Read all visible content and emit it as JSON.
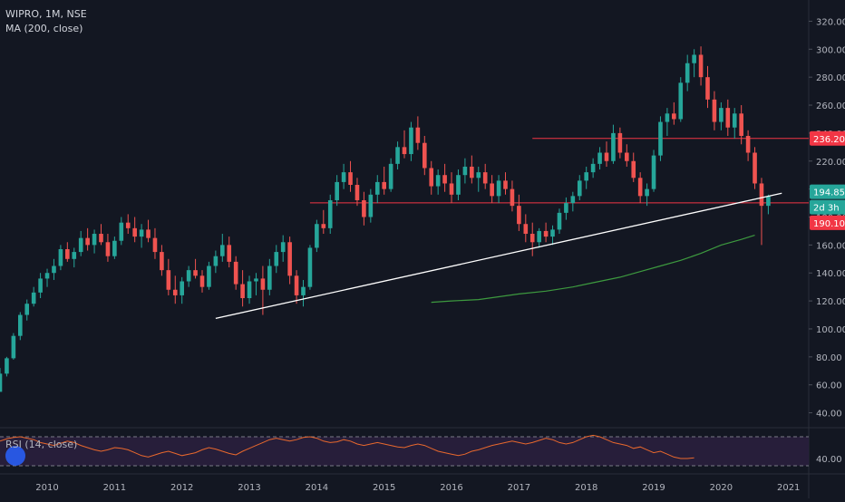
{
  "header": {
    "symbol_line": "WIPRO, 1M, NSE",
    "indicator_line": "MA (200, close)"
  },
  "rsi_panel": {
    "label": "RSI (14, close)",
    "tick": "40.00",
    "upper_band": 70,
    "lower_band": 30,
    "line_color": "#e8682d",
    "band_fill": "#2a1f3d"
  },
  "colors": {
    "background": "#131722",
    "up": "#26a69a",
    "down": "#ef5350",
    "trendline": "#ffffff",
    "hline": "#f23645",
    "ma": "#3d9a3f",
    "axis_text": "#b2b5be"
  },
  "price_labels": {
    "level_236": "236.20",
    "last_price": "194.85",
    "countdown": "2d 3h",
    "level_190": "190.10",
    "last_price_bg": "#26a69a",
    "level_bg": "#f23645"
  },
  "chart_data": {
    "type": "candlestick",
    "symbol": "WIPRO",
    "interval": "1M",
    "exchange": "NSE",
    "ylim": [
      30,
      330
    ],
    "xlim": [
      2009.3,
      2021.3
    ],
    "y_ticks": [
      "40.00",
      "60.00",
      "80.00",
      "100.00",
      "120.00",
      "140.00",
      "160.00",
      "180.00",
      "200.00",
      "220.00",
      "240.00",
      "260.00",
      "280.00",
      "300.00",
      "320.00"
    ],
    "x_ticks": [
      "2010",
      "2011",
      "2012",
      "2013",
      "2014",
      "2015",
      "2016",
      "2017",
      "2018",
      "2019",
      "2020",
      "2021"
    ],
    "horizontal_levels": [
      236.2,
      190.1
    ],
    "trendline": {
      "from": [
        2012.5,
        107.5
      ],
      "to": [
        2020.9,
        197
      ]
    },
    "moving_average": {
      "name": "MA (200, close)",
      "points": [
        [
          2015.7,
          119
        ],
        [
          2016.0,
          120
        ],
        [
          2016.4,
          121
        ],
        [
          2016.7,
          123
        ],
        [
          2017.0,
          125
        ],
        [
          2017.4,
          127
        ],
        [
          2017.8,
          130
        ],
        [
          2018.1,
          133
        ],
        [
          2018.5,
          137
        ],
        [
          2018.8,
          141
        ],
        [
          2019.1,
          145
        ],
        [
          2019.4,
          149
        ],
        [
          2019.7,
          154
        ],
        [
          2020.0,
          160
        ],
        [
          2020.3,
          164
        ],
        [
          2020.5,
          167
        ]
      ]
    },
    "candles": [
      {
        "t": 2009.3,
        "o": 55,
        "h": 72,
        "l": 55,
        "c": 68
      },
      {
        "t": 2009.4,
        "o": 68,
        "h": 80,
        "l": 66,
        "c": 79
      },
      {
        "t": 2009.5,
        "o": 79,
        "h": 97,
        "l": 78,
        "c": 95
      },
      {
        "t": 2009.6,
        "o": 95,
        "h": 112,
        "l": 92,
        "c": 110
      },
      {
        "t": 2009.7,
        "o": 110,
        "h": 121,
        "l": 106,
        "c": 118
      },
      {
        "t": 2009.8,
        "o": 118,
        "h": 130,
        "l": 116,
        "c": 126
      },
      {
        "t": 2009.9,
        "o": 126,
        "h": 140,
        "l": 122,
        "c": 136
      },
      {
        "t": 2010.0,
        "o": 136,
        "h": 143,
        "l": 130,
        "c": 140
      },
      {
        "t": 2010.1,
        "o": 140,
        "h": 150,
        "l": 135,
        "c": 145
      },
      {
        "t": 2010.2,
        "o": 145,
        "h": 160,
        "l": 142,
        "c": 157
      },
      {
        "t": 2010.3,
        "o": 157,
        "h": 162,
        "l": 148,
        "c": 150
      },
      {
        "t": 2010.4,
        "o": 150,
        "h": 158,
        "l": 144,
        "c": 155
      },
      {
        "t": 2010.5,
        "o": 155,
        "h": 170,
        "l": 152,
        "c": 165
      },
      {
        "t": 2010.6,
        "o": 165,
        "h": 172,
        "l": 156,
        "c": 160
      },
      {
        "t": 2010.7,
        "o": 160,
        "h": 171,
        "l": 154,
        "c": 168
      },
      {
        "t": 2010.8,
        "o": 168,
        "h": 175,
        "l": 160,
        "c": 162
      },
      {
        "t": 2010.9,
        "o": 162,
        "h": 168,
        "l": 148,
        "c": 152
      },
      {
        "t": 2011.0,
        "o": 152,
        "h": 166,
        "l": 150,
        "c": 163
      },
      {
        "t": 2011.1,
        "o": 163,
        "h": 180,
        "l": 160,
        "c": 176
      },
      {
        "t": 2011.2,
        "o": 176,
        "h": 182,
        "l": 168,
        "c": 172
      },
      {
        "t": 2011.3,
        "o": 172,
        "h": 180,
        "l": 162,
        "c": 166
      },
      {
        "t": 2011.4,
        "o": 166,
        "h": 175,
        "l": 158,
        "c": 171
      },
      {
        "t": 2011.5,
        "o": 171,
        "h": 178,
        "l": 162,
        "c": 165
      },
      {
        "t": 2011.6,
        "o": 165,
        "h": 172,
        "l": 150,
        "c": 155
      },
      {
        "t": 2011.7,
        "o": 155,
        "h": 160,
        "l": 138,
        "c": 142
      },
      {
        "t": 2011.8,
        "o": 142,
        "h": 150,
        "l": 124,
        "c": 128
      },
      {
        "t": 2011.9,
        "o": 128,
        "h": 138,
        "l": 118,
        "c": 124
      },
      {
        "t": 2012.0,
        "o": 124,
        "h": 137,
        "l": 118,
        "c": 134
      },
      {
        "t": 2012.1,
        "o": 134,
        "h": 145,
        "l": 130,
        "c": 142
      },
      {
        "t": 2012.2,
        "o": 142,
        "h": 150,
        "l": 136,
        "c": 138
      },
      {
        "t": 2012.3,
        "o": 138,
        "h": 142,
        "l": 126,
        "c": 130
      },
      {
        "t": 2012.4,
        "o": 130,
        "h": 148,
        "l": 128,
        "c": 145
      },
      {
        "t": 2012.5,
        "o": 145,
        "h": 156,
        "l": 140,
        "c": 152
      },
      {
        "t": 2012.6,
        "o": 152,
        "h": 168,
        "l": 148,
        "c": 160
      },
      {
        "t": 2012.7,
        "o": 160,
        "h": 166,
        "l": 144,
        "c": 148
      },
      {
        "t": 2012.8,
        "o": 148,
        "h": 152,
        "l": 128,
        "c": 132
      },
      {
        "t": 2012.9,
        "o": 132,
        "h": 142,
        "l": 116,
        "c": 122
      },
      {
        "t": 2013.0,
        "o": 122,
        "h": 138,
        "l": 118,
        "c": 134
      },
      {
        "t": 2013.1,
        "o": 134,
        "h": 140,
        "l": 124,
        "c": 136
      },
      {
        "t": 2013.2,
        "o": 136,
        "h": 145,
        "l": 110,
        "c": 128
      },
      {
        "t": 2013.3,
        "o": 128,
        "h": 150,
        "l": 124,
        "c": 145
      },
      {
        "t": 2013.4,
        "o": 145,
        "h": 160,
        "l": 140,
        "c": 155
      },
      {
        "t": 2013.5,
        "o": 155,
        "h": 167,
        "l": 148,
        "c": 162
      },
      {
        "t": 2013.6,
        "o": 162,
        "h": 166,
        "l": 132,
        "c": 138
      },
      {
        "t": 2013.7,
        "o": 138,
        "h": 142,
        "l": 118,
        "c": 124
      },
      {
        "t": 2013.8,
        "o": 124,
        "h": 135,
        "l": 116,
        "c": 130
      },
      {
        "t": 2013.9,
        "o": 130,
        "h": 160,
        "l": 128,
        "c": 158
      },
      {
        "t": 2014.0,
        "o": 158,
        "h": 178,
        "l": 155,
        "c": 175
      },
      {
        "t": 2014.1,
        "o": 175,
        "h": 185,
        "l": 168,
        "c": 172
      },
      {
        "t": 2014.2,
        "o": 172,
        "h": 196,
        "l": 168,
        "c": 192
      },
      {
        "t": 2014.3,
        "o": 192,
        "h": 210,
        "l": 188,
        "c": 205
      },
      {
        "t": 2014.4,
        "o": 205,
        "h": 218,
        "l": 200,
        "c": 212
      },
      {
        "t": 2014.5,
        "o": 212,
        "h": 220,
        "l": 198,
        "c": 203
      },
      {
        "t": 2014.6,
        "o": 203,
        "h": 208,
        "l": 188,
        "c": 192
      },
      {
        "t": 2014.7,
        "o": 192,
        "h": 198,
        "l": 174,
        "c": 180
      },
      {
        "t": 2014.8,
        "o": 180,
        "h": 200,
        "l": 176,
        "c": 196
      },
      {
        "t": 2014.9,
        "o": 196,
        "h": 210,
        "l": 190,
        "c": 205
      },
      {
        "t": 2015.0,
        "o": 205,
        "h": 216,
        "l": 196,
        "c": 200
      },
      {
        "t": 2015.1,
        "o": 200,
        "h": 222,
        "l": 198,
        "c": 218
      },
      {
        "t": 2015.2,
        "o": 218,
        "h": 234,
        "l": 214,
        "c": 230
      },
      {
        "t": 2015.3,
        "o": 230,
        "h": 242,
        "l": 222,
        "c": 225
      },
      {
        "t": 2015.4,
        "o": 225,
        "h": 248,
        "l": 220,
        "c": 244
      },
      {
        "t": 2015.5,
        "o": 244,
        "h": 252,
        "l": 228,
        "c": 233
      },
      {
        "t": 2015.6,
        "o": 233,
        "h": 238,
        "l": 210,
        "c": 215
      },
      {
        "t": 2015.7,
        "o": 215,
        "h": 220,
        "l": 196,
        "c": 202
      },
      {
        "t": 2015.8,
        "o": 202,
        "h": 214,
        "l": 196,
        "c": 210
      },
      {
        "t": 2015.9,
        "o": 210,
        "h": 218,
        "l": 198,
        "c": 204
      },
      {
        "t": 2016.0,
        "o": 204,
        "h": 212,
        "l": 190,
        "c": 196
      },
      {
        "t": 2016.1,
        "o": 196,
        "h": 214,
        "l": 192,
        "c": 210
      },
      {
        "t": 2016.2,
        "o": 210,
        "h": 222,
        "l": 204,
        "c": 216
      },
      {
        "t": 2016.3,
        "o": 216,
        "h": 224,
        "l": 204,
        "c": 208
      },
      {
        "t": 2016.4,
        "o": 208,
        "h": 216,
        "l": 198,
        "c": 212
      },
      {
        "t": 2016.5,
        "o": 212,
        "h": 218,
        "l": 200,
        "c": 204
      },
      {
        "t": 2016.6,
        "o": 204,
        "h": 210,
        "l": 190,
        "c": 195
      },
      {
        "t": 2016.7,
        "o": 195,
        "h": 210,
        "l": 190,
        "c": 206
      },
      {
        "t": 2016.8,
        "o": 206,
        "h": 212,
        "l": 196,
        "c": 200
      },
      {
        "t": 2016.9,
        "o": 200,
        "h": 206,
        "l": 184,
        "c": 188
      },
      {
        "t": 2017.0,
        "o": 188,
        "h": 196,
        "l": 170,
        "c": 175
      },
      {
        "t": 2017.1,
        "o": 175,
        "h": 182,
        "l": 162,
        "c": 168
      },
      {
        "t": 2017.2,
        "o": 168,
        "h": 176,
        "l": 152,
        "c": 162
      },
      {
        "t": 2017.3,
        "o": 162,
        "h": 172,
        "l": 158,
        "c": 170
      },
      {
        "t": 2017.4,
        "o": 170,
        "h": 176,
        "l": 162,
        "c": 166
      },
      {
        "t": 2017.5,
        "o": 166,
        "h": 174,
        "l": 160,
        "c": 171
      },
      {
        "t": 2017.6,
        "o": 171,
        "h": 186,
        "l": 168,
        "c": 183
      },
      {
        "t": 2017.7,
        "o": 183,
        "h": 194,
        "l": 178,
        "c": 190
      },
      {
        "t": 2017.8,
        "o": 190,
        "h": 198,
        "l": 184,
        "c": 195
      },
      {
        "t": 2017.9,
        "o": 195,
        "h": 210,
        "l": 192,
        "c": 206
      },
      {
        "t": 2018.0,
        "o": 206,
        "h": 216,
        "l": 200,
        "c": 212
      },
      {
        "t": 2018.1,
        "o": 212,
        "h": 222,
        "l": 208,
        "c": 218
      },
      {
        "t": 2018.2,
        "o": 218,
        "h": 230,
        "l": 214,
        "c": 226
      },
      {
        "t": 2018.3,
        "o": 226,
        "h": 234,
        "l": 216,
        "c": 220
      },
      {
        "t": 2018.4,
        "o": 220,
        "h": 246,
        "l": 218,
        "c": 240
      },
      {
        "t": 2018.5,
        "o": 240,
        "h": 244,
        "l": 222,
        "c": 226
      },
      {
        "t": 2018.6,
        "o": 226,
        "h": 232,
        "l": 216,
        "c": 220
      },
      {
        "t": 2018.7,
        "o": 220,
        "h": 226,
        "l": 205,
        "c": 208
      },
      {
        "t": 2018.8,
        "o": 208,
        "h": 212,
        "l": 190,
        "c": 195
      },
      {
        "t": 2018.9,
        "o": 195,
        "h": 204,
        "l": 188,
        "c": 200
      },
      {
        "t": 2019.0,
        "o": 200,
        "h": 228,
        "l": 198,
        "c": 224
      },
      {
        "t": 2019.1,
        "o": 224,
        "h": 252,
        "l": 220,
        "c": 248
      },
      {
        "t": 2019.2,
        "o": 248,
        "h": 258,
        "l": 238,
        "c": 254
      },
      {
        "t": 2019.3,
        "o": 254,
        "h": 262,
        "l": 246,
        "c": 250
      },
      {
        "t": 2019.4,
        "o": 250,
        "h": 280,
        "l": 248,
        "c": 276
      },
      {
        "t": 2019.5,
        "o": 276,
        "h": 296,
        "l": 270,
        "c": 290
      },
      {
        "t": 2019.6,
        "o": 290,
        "h": 300,
        "l": 280,
        "c": 296
      },
      {
        "t": 2019.7,
        "o": 296,
        "h": 302,
        "l": 274,
        "c": 280
      },
      {
        "t": 2019.8,
        "o": 280,
        "h": 288,
        "l": 258,
        "c": 264
      },
      {
        "t": 2019.9,
        "o": 264,
        "h": 270,
        "l": 242,
        "c": 248
      },
      {
        "t": 2020.0,
        "o": 248,
        "h": 262,
        "l": 242,
        "c": 258
      },
      {
        "t": 2020.1,
        "o": 258,
        "h": 264,
        "l": 238,
        "c": 244
      },
      {
        "t": 2020.2,
        "o": 244,
        "h": 258,
        "l": 236,
        "c": 254
      },
      {
        "t": 2020.3,
        "o": 254,
        "h": 260,
        "l": 232,
        "c": 238
      },
      {
        "t": 2020.4,
        "o": 238,
        "h": 242,
        "l": 220,
        "c": 226
      },
      {
        "t": 2020.5,
        "o": 226,
        "h": 230,
        "l": 200,
        "c": 204
      },
      {
        "t": 2020.6,
        "o": 204,
        "h": 208,
        "l": 160,
        "c": 188
      },
      {
        "t": 2020.7,
        "o": 188,
        "h": 196,
        "l": 182,
        "c": 194.85
      }
    ],
    "rsi": [
      64,
      67,
      69,
      70,
      68,
      66,
      62,
      60,
      58,
      61,
      64,
      62,
      58,
      55,
      52,
      50,
      52,
      55,
      54,
      52,
      48,
      44,
      42,
      45,
      48,
      50,
      47,
      44,
      46,
      48,
      52,
      55,
      53,
      50,
      47,
      45,
      50,
      54,
      58,
      62,
      66,
      68,
      66,
      64,
      66,
      69,
      70,
      68,
      64,
      62,
      63,
      66,
      64,
      60,
      58,
      60,
      62,
      60,
      58,
      56,
      55,
      58,
      60,
      58,
      54,
      50,
      48,
      46,
      44,
      46,
      50,
      52,
      55,
      58,
      60,
      62,
      64,
      62,
      60,
      62,
      65,
      68,
      66,
      62,
      60,
      62,
      66,
      70,
      72,
      70,
      66,
      62,
      60,
      58,
      54,
      56,
      52,
      48,
      50,
      46,
      42,
      40,
      40,
      41
    ]
  }
}
